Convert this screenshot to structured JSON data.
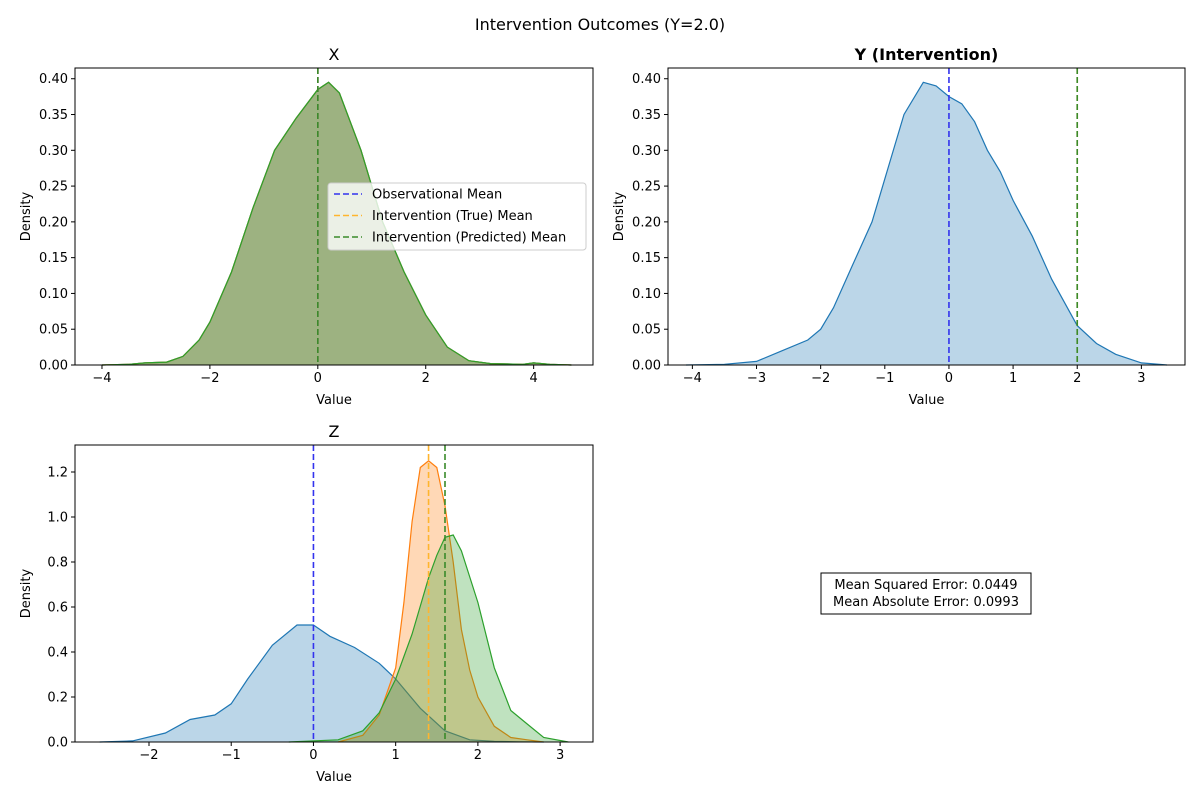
{
  "figure_title": "Intervention Outcomes (Y=2.0)",
  "colors": {
    "blue": "#1f77b4",
    "orange": "#ff7f0e",
    "green": "#2ca02c",
    "obs_mean_line": "#3333ee",
    "true_mean_line": "#ffb52e",
    "pred_mean_line": "#3a8a2a"
  },
  "legend": {
    "location": "center-right of X panel",
    "entries": [
      {
        "label": "Observational Mean",
        "color_key": "obs_mean_line"
      },
      {
        "label": "Intervention (True) Mean",
        "color_key": "true_mean_line"
      },
      {
        "label": "Intervention (Predicted) Mean",
        "color_key": "pred_mean_line"
      }
    ]
  },
  "metrics": {
    "mse": "Mean Squared Error: 0.0449",
    "mae": "Mean Absolute Error: 0.0993"
  },
  "chart_data": [
    {
      "type": "area",
      "title": "X",
      "title_bold": false,
      "xlabel": "Value",
      "ylabel": "Density",
      "xlim": [
        -4.5,
        5.1
      ],
      "ylim": [
        0,
        0.415
      ],
      "xticks": [
        -4,
        -2,
        0,
        2,
        4
      ],
      "yticks": [
        0.0,
        0.05,
        0.1,
        0.15,
        0.2,
        0.25,
        0.3,
        0.35,
        0.4
      ],
      "ytick_format": 2,
      "grid": false,
      "series": [
        {
          "color_key": "blue",
          "alpha": 0.3,
          "x": [
            -4.0,
            -3.5,
            -3.2,
            -2.8,
            -2.5,
            -2.2,
            -2.0,
            -1.6,
            -1.2,
            -0.8,
            -0.4,
            0.0,
            0.2,
            0.4,
            0.8,
            1.2,
            1.6,
            2.0,
            2.4,
            2.8,
            3.2,
            3.8,
            4.0,
            4.3,
            4.7
          ],
          "y": [
            0.0,
            0.001,
            0.003,
            0.004,
            0.012,
            0.035,
            0.06,
            0.13,
            0.22,
            0.3,
            0.345,
            0.385,
            0.395,
            0.38,
            0.3,
            0.2,
            0.13,
            0.07,
            0.025,
            0.006,
            0.002,
            0.001,
            0.003,
            0.001,
            0.0
          ]
        },
        {
          "color_key": "orange",
          "alpha": 0.3,
          "x": [
            -4.0,
            -3.5,
            -3.2,
            -2.8,
            -2.5,
            -2.2,
            -2.0,
            -1.6,
            -1.2,
            -0.8,
            -0.4,
            0.0,
            0.2,
            0.4,
            0.8,
            1.2,
            1.6,
            2.0,
            2.4,
            2.8,
            3.2,
            3.8,
            4.0,
            4.3,
            4.7
          ],
          "y": [
            0.0,
            0.001,
            0.003,
            0.004,
            0.012,
            0.035,
            0.06,
            0.13,
            0.22,
            0.3,
            0.345,
            0.385,
            0.395,
            0.38,
            0.3,
            0.2,
            0.13,
            0.07,
            0.025,
            0.006,
            0.002,
            0.001,
            0.003,
            0.001,
            0.0
          ]
        },
        {
          "color_key": "green",
          "alpha": 0.3,
          "x": [
            -4.0,
            -3.5,
            -3.2,
            -2.8,
            -2.5,
            -2.2,
            -2.0,
            -1.6,
            -1.2,
            -0.8,
            -0.4,
            0.0,
            0.2,
            0.4,
            0.8,
            1.2,
            1.6,
            2.0,
            2.4,
            2.8,
            3.2,
            3.8,
            4.0,
            4.3,
            4.7
          ],
          "y": [
            0.0,
            0.001,
            0.003,
            0.004,
            0.012,
            0.035,
            0.06,
            0.13,
            0.22,
            0.3,
            0.345,
            0.385,
            0.395,
            0.38,
            0.3,
            0.2,
            0.13,
            0.07,
            0.025,
            0.006,
            0.002,
            0.001,
            0.003,
            0.001,
            0.0
          ]
        }
      ],
      "vlines": [
        {
          "x": 0.0,
          "color_key": "obs_mean_line"
        },
        {
          "x": 0.0,
          "color_key": "true_mean_line"
        },
        {
          "x": 0.0,
          "color_key": "pred_mean_line"
        }
      ]
    },
    {
      "type": "area",
      "title": "Y (Intervention)",
      "title_bold": true,
      "xlabel": "Value",
      "ylabel": "Density",
      "xlim": [
        -4.38,
        3.68
      ],
      "ylim": [
        0,
        0.415
      ],
      "xticks": [
        -4,
        -3,
        -2,
        -1,
        0,
        1,
        2,
        3
      ],
      "yticks": [
        0.0,
        0.05,
        0.1,
        0.15,
        0.2,
        0.25,
        0.3,
        0.35,
        0.4
      ],
      "ytick_format": 2,
      "grid": false,
      "series": [
        {
          "color_key": "blue",
          "alpha": 0.3,
          "x": [
            -4.1,
            -3.5,
            -3.0,
            -2.6,
            -2.2,
            -2.0,
            -1.8,
            -1.5,
            -1.2,
            -1.0,
            -0.7,
            -0.4,
            -0.2,
            0.0,
            0.2,
            0.4,
            0.6,
            0.8,
            1.0,
            1.3,
            1.6,
            2.0,
            2.3,
            2.6,
            3.0,
            3.4
          ],
          "y": [
            0.0,
            0.001,
            0.005,
            0.02,
            0.035,
            0.05,
            0.08,
            0.14,
            0.2,
            0.26,
            0.35,
            0.395,
            0.39,
            0.375,
            0.365,
            0.34,
            0.3,
            0.27,
            0.23,
            0.18,
            0.12,
            0.055,
            0.03,
            0.015,
            0.003,
            0.0
          ]
        }
      ],
      "vlines": [
        {
          "x": 0.0,
          "color_key": "obs_mean_line"
        },
        {
          "x": 2.0,
          "color_key": "true_mean_line"
        },
        {
          "x": 2.0,
          "color_key": "pred_mean_line"
        }
      ]
    },
    {
      "type": "area",
      "title": "Z",
      "title_bold": false,
      "xlabel": "Value",
      "ylabel": "Density",
      "xlim": [
        -2.9,
        3.4
      ],
      "ylim": [
        0,
        1.32
      ],
      "xticks": [
        -2,
        -1,
        0,
        1,
        2,
        3
      ],
      "yticks": [
        0.0,
        0.2,
        0.4,
        0.6,
        0.8,
        1.0,
        1.2
      ],
      "ytick_format": 1,
      "grid": false,
      "series": [
        {
          "color_key": "blue",
          "alpha": 0.3,
          "x": [
            -2.6,
            -2.2,
            -1.8,
            -1.5,
            -1.2,
            -1.0,
            -0.8,
            -0.5,
            -0.2,
            0.0,
            0.2,
            0.5,
            0.8,
            1.0,
            1.3,
            1.6,
            1.9,
            2.2,
            2.5,
            2.8
          ],
          "y": [
            0.0,
            0.005,
            0.04,
            0.1,
            0.12,
            0.17,
            0.28,
            0.43,
            0.52,
            0.52,
            0.47,
            0.42,
            0.35,
            0.28,
            0.15,
            0.05,
            0.01,
            0.003,
            0.001,
            0.0
          ]
        },
        {
          "color_key": "orange",
          "alpha": 0.3,
          "x": [
            0.3,
            0.6,
            0.8,
            1.0,
            1.1,
            1.2,
            1.3,
            1.4,
            1.5,
            1.6,
            1.7,
            1.8,
            1.9,
            2.0,
            2.2,
            2.4,
            2.6,
            2.8
          ],
          "y": [
            0.0,
            0.03,
            0.12,
            0.33,
            0.62,
            0.98,
            1.22,
            1.25,
            1.22,
            1.05,
            0.8,
            0.5,
            0.32,
            0.2,
            0.07,
            0.02,
            0.01,
            0.0
          ]
        },
        {
          "color_key": "green",
          "alpha": 0.3,
          "x": [
            -0.3,
            0.3,
            0.6,
            0.8,
            1.0,
            1.2,
            1.4,
            1.5,
            1.6,
            1.7,
            1.8,
            2.0,
            2.2,
            2.4,
            2.6,
            2.8,
            3.1
          ],
          "y": [
            0.0,
            0.01,
            0.05,
            0.13,
            0.28,
            0.48,
            0.73,
            0.83,
            0.91,
            0.92,
            0.85,
            0.62,
            0.33,
            0.14,
            0.08,
            0.02,
            0.0
          ]
        }
      ],
      "vlines": [
        {
          "x": 0.0,
          "color_key": "obs_mean_line"
        },
        {
          "x": 1.4,
          "color_key": "true_mean_line"
        },
        {
          "x": 1.6,
          "color_key": "pred_mean_line"
        }
      ]
    }
  ]
}
